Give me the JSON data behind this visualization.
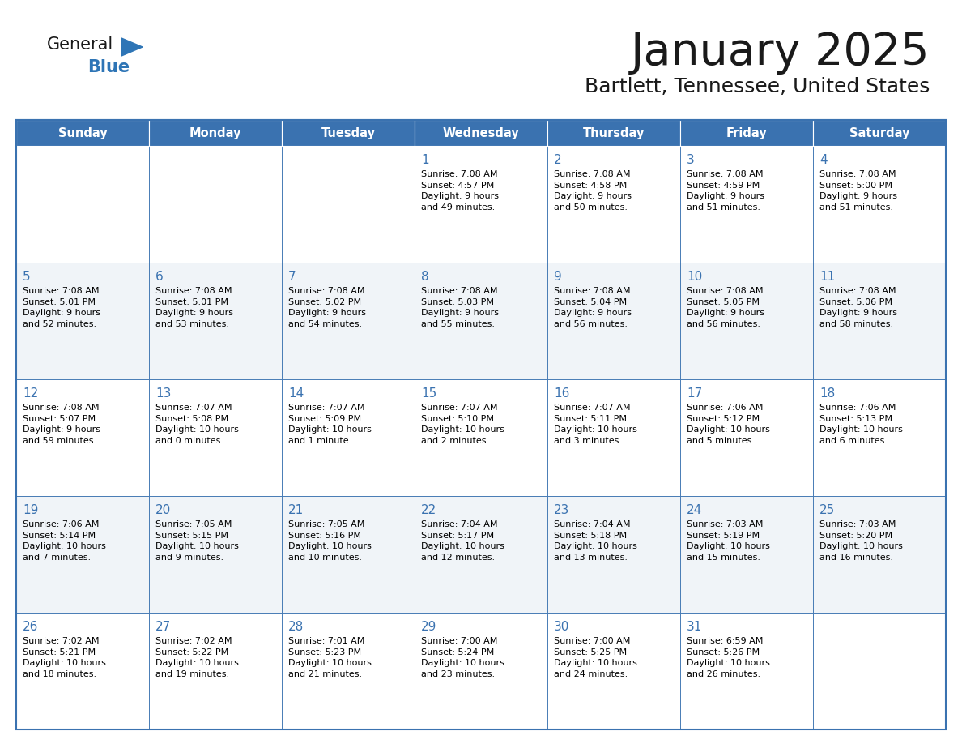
{
  "title": "January 2025",
  "subtitle": "Bartlett, Tennessee, United States",
  "header_color": "#3A72B0",
  "header_text_color": "#FFFFFF",
  "cell_bg_even": "#FFFFFF",
  "cell_bg_odd": "#F0F4F8",
  "border_color": "#3A72B0",
  "text_color": "#000000",
  "day_number_color": "#3A72B0",
  "logo_text_color": "#1a1a1a",
  "logo_blue_color": "#2E75B6",
  "days_of_week": [
    "Sunday",
    "Monday",
    "Tuesday",
    "Wednesday",
    "Thursday",
    "Friday",
    "Saturday"
  ],
  "weeks": [
    [
      {
        "day": "",
        "info": ""
      },
      {
        "day": "",
        "info": ""
      },
      {
        "day": "",
        "info": ""
      },
      {
        "day": "1",
        "info": "Sunrise: 7:08 AM\nSunset: 4:57 PM\nDaylight: 9 hours\nand 49 minutes."
      },
      {
        "day": "2",
        "info": "Sunrise: 7:08 AM\nSunset: 4:58 PM\nDaylight: 9 hours\nand 50 minutes."
      },
      {
        "day": "3",
        "info": "Sunrise: 7:08 AM\nSunset: 4:59 PM\nDaylight: 9 hours\nand 51 minutes."
      },
      {
        "day": "4",
        "info": "Sunrise: 7:08 AM\nSunset: 5:00 PM\nDaylight: 9 hours\nand 51 minutes."
      }
    ],
    [
      {
        "day": "5",
        "info": "Sunrise: 7:08 AM\nSunset: 5:01 PM\nDaylight: 9 hours\nand 52 minutes."
      },
      {
        "day": "6",
        "info": "Sunrise: 7:08 AM\nSunset: 5:01 PM\nDaylight: 9 hours\nand 53 minutes."
      },
      {
        "day": "7",
        "info": "Sunrise: 7:08 AM\nSunset: 5:02 PM\nDaylight: 9 hours\nand 54 minutes."
      },
      {
        "day": "8",
        "info": "Sunrise: 7:08 AM\nSunset: 5:03 PM\nDaylight: 9 hours\nand 55 minutes."
      },
      {
        "day": "9",
        "info": "Sunrise: 7:08 AM\nSunset: 5:04 PM\nDaylight: 9 hours\nand 56 minutes."
      },
      {
        "day": "10",
        "info": "Sunrise: 7:08 AM\nSunset: 5:05 PM\nDaylight: 9 hours\nand 56 minutes."
      },
      {
        "day": "11",
        "info": "Sunrise: 7:08 AM\nSunset: 5:06 PM\nDaylight: 9 hours\nand 58 minutes."
      }
    ],
    [
      {
        "day": "12",
        "info": "Sunrise: 7:08 AM\nSunset: 5:07 PM\nDaylight: 9 hours\nand 59 minutes."
      },
      {
        "day": "13",
        "info": "Sunrise: 7:07 AM\nSunset: 5:08 PM\nDaylight: 10 hours\nand 0 minutes."
      },
      {
        "day": "14",
        "info": "Sunrise: 7:07 AM\nSunset: 5:09 PM\nDaylight: 10 hours\nand 1 minute."
      },
      {
        "day": "15",
        "info": "Sunrise: 7:07 AM\nSunset: 5:10 PM\nDaylight: 10 hours\nand 2 minutes."
      },
      {
        "day": "16",
        "info": "Sunrise: 7:07 AM\nSunset: 5:11 PM\nDaylight: 10 hours\nand 3 minutes."
      },
      {
        "day": "17",
        "info": "Sunrise: 7:06 AM\nSunset: 5:12 PM\nDaylight: 10 hours\nand 5 minutes."
      },
      {
        "day": "18",
        "info": "Sunrise: 7:06 AM\nSunset: 5:13 PM\nDaylight: 10 hours\nand 6 minutes."
      }
    ],
    [
      {
        "day": "19",
        "info": "Sunrise: 7:06 AM\nSunset: 5:14 PM\nDaylight: 10 hours\nand 7 minutes."
      },
      {
        "day": "20",
        "info": "Sunrise: 7:05 AM\nSunset: 5:15 PM\nDaylight: 10 hours\nand 9 minutes."
      },
      {
        "day": "21",
        "info": "Sunrise: 7:05 AM\nSunset: 5:16 PM\nDaylight: 10 hours\nand 10 minutes."
      },
      {
        "day": "22",
        "info": "Sunrise: 7:04 AM\nSunset: 5:17 PM\nDaylight: 10 hours\nand 12 minutes."
      },
      {
        "day": "23",
        "info": "Sunrise: 7:04 AM\nSunset: 5:18 PM\nDaylight: 10 hours\nand 13 minutes."
      },
      {
        "day": "24",
        "info": "Sunrise: 7:03 AM\nSunset: 5:19 PM\nDaylight: 10 hours\nand 15 minutes."
      },
      {
        "day": "25",
        "info": "Sunrise: 7:03 AM\nSunset: 5:20 PM\nDaylight: 10 hours\nand 16 minutes."
      }
    ],
    [
      {
        "day": "26",
        "info": "Sunrise: 7:02 AM\nSunset: 5:21 PM\nDaylight: 10 hours\nand 18 minutes."
      },
      {
        "day": "27",
        "info": "Sunrise: 7:02 AM\nSunset: 5:22 PM\nDaylight: 10 hours\nand 19 minutes."
      },
      {
        "day": "28",
        "info": "Sunrise: 7:01 AM\nSunset: 5:23 PM\nDaylight: 10 hours\nand 21 minutes."
      },
      {
        "day": "29",
        "info": "Sunrise: 7:00 AM\nSunset: 5:24 PM\nDaylight: 10 hours\nand 23 minutes."
      },
      {
        "day": "30",
        "info": "Sunrise: 7:00 AM\nSunset: 5:25 PM\nDaylight: 10 hours\nand 24 minutes."
      },
      {
        "day": "31",
        "info": "Sunrise: 6:59 AM\nSunset: 5:26 PM\nDaylight: 10 hours\nand 26 minutes."
      },
      {
        "day": "",
        "info": ""
      }
    ]
  ]
}
